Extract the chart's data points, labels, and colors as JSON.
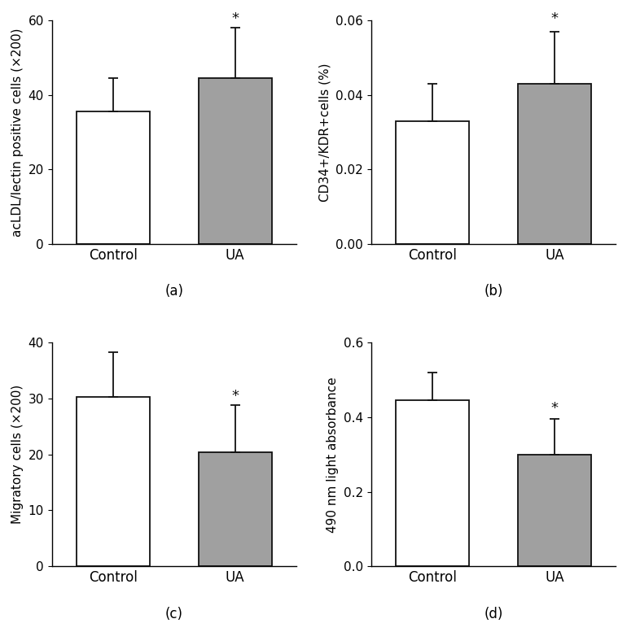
{
  "subplots": [
    {
      "label": "(a)",
      "ylabel": "acLDL/lectin positive cells (×200)",
      "ylim": [
        0,
        60
      ],
      "yticks": [
        0,
        20,
        40,
        60
      ],
      "categories": [
        "Control",
        "UA"
      ],
      "values": [
        35.5,
        44.5
      ],
      "errors_up": [
        9.0,
        13.5
      ],
      "errors_down": [
        0,
        0
      ],
      "colors": [
        "white",
        "#a0a0a0"
      ],
      "star_on": 1,
      "star_above": 58.5
    },
    {
      "label": "(b)",
      "ylabel": "CD34+/KDR+cells (%)",
      "ylim": [
        0,
        0.06
      ],
      "yticks": [
        0.0,
        0.02,
        0.04,
        0.06
      ],
      "categories": [
        "Control",
        "UA"
      ],
      "values": [
        0.033,
        0.043
      ],
      "errors_up": [
        0.01,
        0.014
      ],
      "errors_down": [
        0,
        0
      ],
      "colors": [
        "white",
        "#a0a0a0"
      ],
      "star_on": 1,
      "star_above": 0.0585
    },
    {
      "label": "(c)",
      "ylabel": "Migratory cells (×200)",
      "ylim": [
        0,
        40
      ],
      "yticks": [
        0,
        10,
        20,
        30,
        40
      ],
      "categories": [
        "Control",
        "UA"
      ],
      "values": [
        30.3,
        20.4
      ],
      "errors_up": [
        8.0,
        8.5
      ],
      "errors_down": [
        0,
        0
      ],
      "colors": [
        "white",
        "#a0a0a0"
      ],
      "star_on": 1,
      "star_above": 29.2
    },
    {
      "label": "(d)",
      "ylabel": "490 nm light absorbance",
      "ylim": [
        0.0,
        0.6
      ],
      "yticks": [
        0.0,
        0.2,
        0.4,
        0.6
      ],
      "categories": [
        "Control",
        "UA"
      ],
      "values": [
        0.445,
        0.3
      ],
      "errors_up": [
        0.075,
        0.095
      ],
      "errors_down": [
        0,
        0
      ],
      "colors": [
        "white",
        "#a0a0a0"
      ],
      "star_on": 1,
      "star_above": 0.405
    }
  ],
  "bar_width": 0.6,
  "bar_edgecolor": "#111111",
  "bar_linewidth": 1.3,
  "error_color": "#111111",
  "error_capsize": 4,
  "error_linewidth": 1.3,
  "tick_fontsize": 11,
  "ylabel_fontsize": 11,
  "xlabel_fontsize": 12,
  "star_fontsize": 13,
  "caption_fontsize": 12,
  "background_color": "#ffffff",
  "x_positions": [
    0.5,
    1.5
  ]
}
